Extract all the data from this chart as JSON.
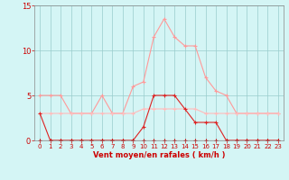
{
  "x": [
    0,
    1,
    2,
    3,
    4,
    5,
    6,
    7,
    8,
    9,
    10,
    11,
    12,
    13,
    14,
    15,
    16,
    17,
    18,
    19,
    20,
    21,
    22,
    23
  ],
  "line_light_peak_y": [
    5,
    5,
    5,
    3,
    3,
    3,
    5,
    3,
    3,
    6,
    6.5,
    11.5,
    13.5,
    11.5,
    10.5,
    10.5,
    7,
    5.5,
    5,
    3,
    3,
    3,
    3,
    3
  ],
  "line_light_flat_y": [
    3,
    3,
    3,
    3,
    3,
    3,
    3,
    3,
    3,
    3,
    3.5,
    3.5,
    3.5,
    3.5,
    3.5,
    3.5,
    3,
    3,
    3,
    3,
    3,
    3,
    3,
    3
  ],
  "line_dark_mid_y": [
    3,
    0,
    0,
    0,
    0,
    0,
    0,
    0,
    0,
    0,
    1.5,
    5,
    5,
    5,
    3.5,
    2,
    2,
    2,
    0,
    0,
    0,
    0,
    0,
    0
  ],
  "line_dark_zero_y": [
    0,
    0,
    0,
    0,
    0,
    0,
    0,
    0,
    0,
    0,
    0,
    0,
    0,
    0,
    0,
    0,
    0,
    0,
    0,
    0,
    0,
    0,
    0,
    0
  ],
  "line_light_peak_color": "#ff9999",
  "line_light_flat_color": "#ffbbbb",
  "line_dark_mid_color": "#dd2222",
  "line_dark_zero_color": "#cc0000",
  "bg_color": "#d4f5f5",
  "grid_color": "#99cccc",
  "spine_color": "#888888",
  "tick_color": "#cc0000",
  "label_color": "#cc0000",
  "xlabel": "Vent moyen/en rafales ( km/h )",
  "ylim": [
    0,
    15
  ],
  "xlim": [
    -0.5,
    23.5
  ],
  "yticks": [
    0,
    5,
    10,
    15
  ],
  "xticks": [
    0,
    1,
    2,
    3,
    4,
    5,
    6,
    7,
    8,
    9,
    10,
    11,
    12,
    13,
    14,
    15,
    16,
    17,
    18,
    19,
    20,
    21,
    22,
    23
  ]
}
